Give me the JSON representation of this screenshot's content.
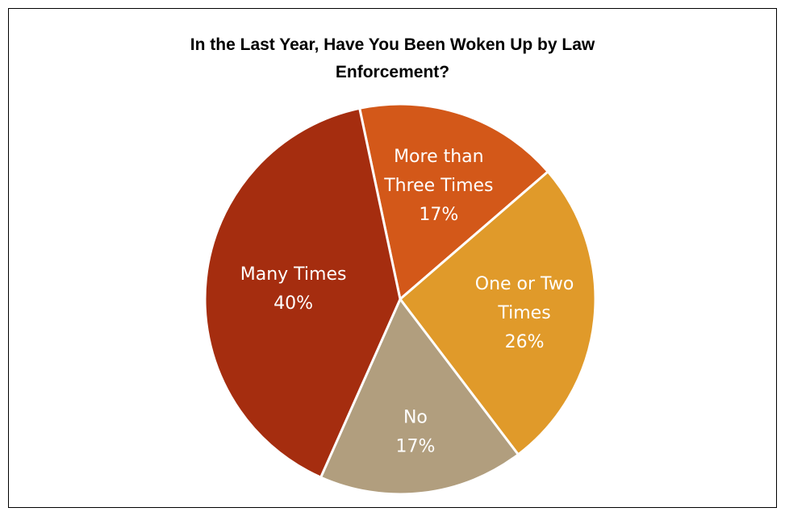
{
  "chart_data": {
    "type": "pie",
    "title_lines": [
      "In the Last Year, Have You Been Woken Up by Law",
      "Enforcement?"
    ],
    "slices": [
      {
        "label_lines": [
          "More than",
          "Three Times"
        ],
        "percent_label": "17%",
        "value": 17,
        "color": "#d35819"
      },
      {
        "label_lines": [
          "One or Two",
          "Times"
        ],
        "percent_label": "26%",
        "value": 26,
        "color": "#e09a2a"
      },
      {
        "label_lines": [
          "No"
        ],
        "percent_label": "17%",
        "value": 17,
        "color": "#b19e7e"
      },
      {
        "label_lines": [
          "Many Times"
        ],
        "percent_label": "40%",
        "value": 40,
        "color": "#a52d0f"
      }
    ],
    "legend": "none"
  }
}
